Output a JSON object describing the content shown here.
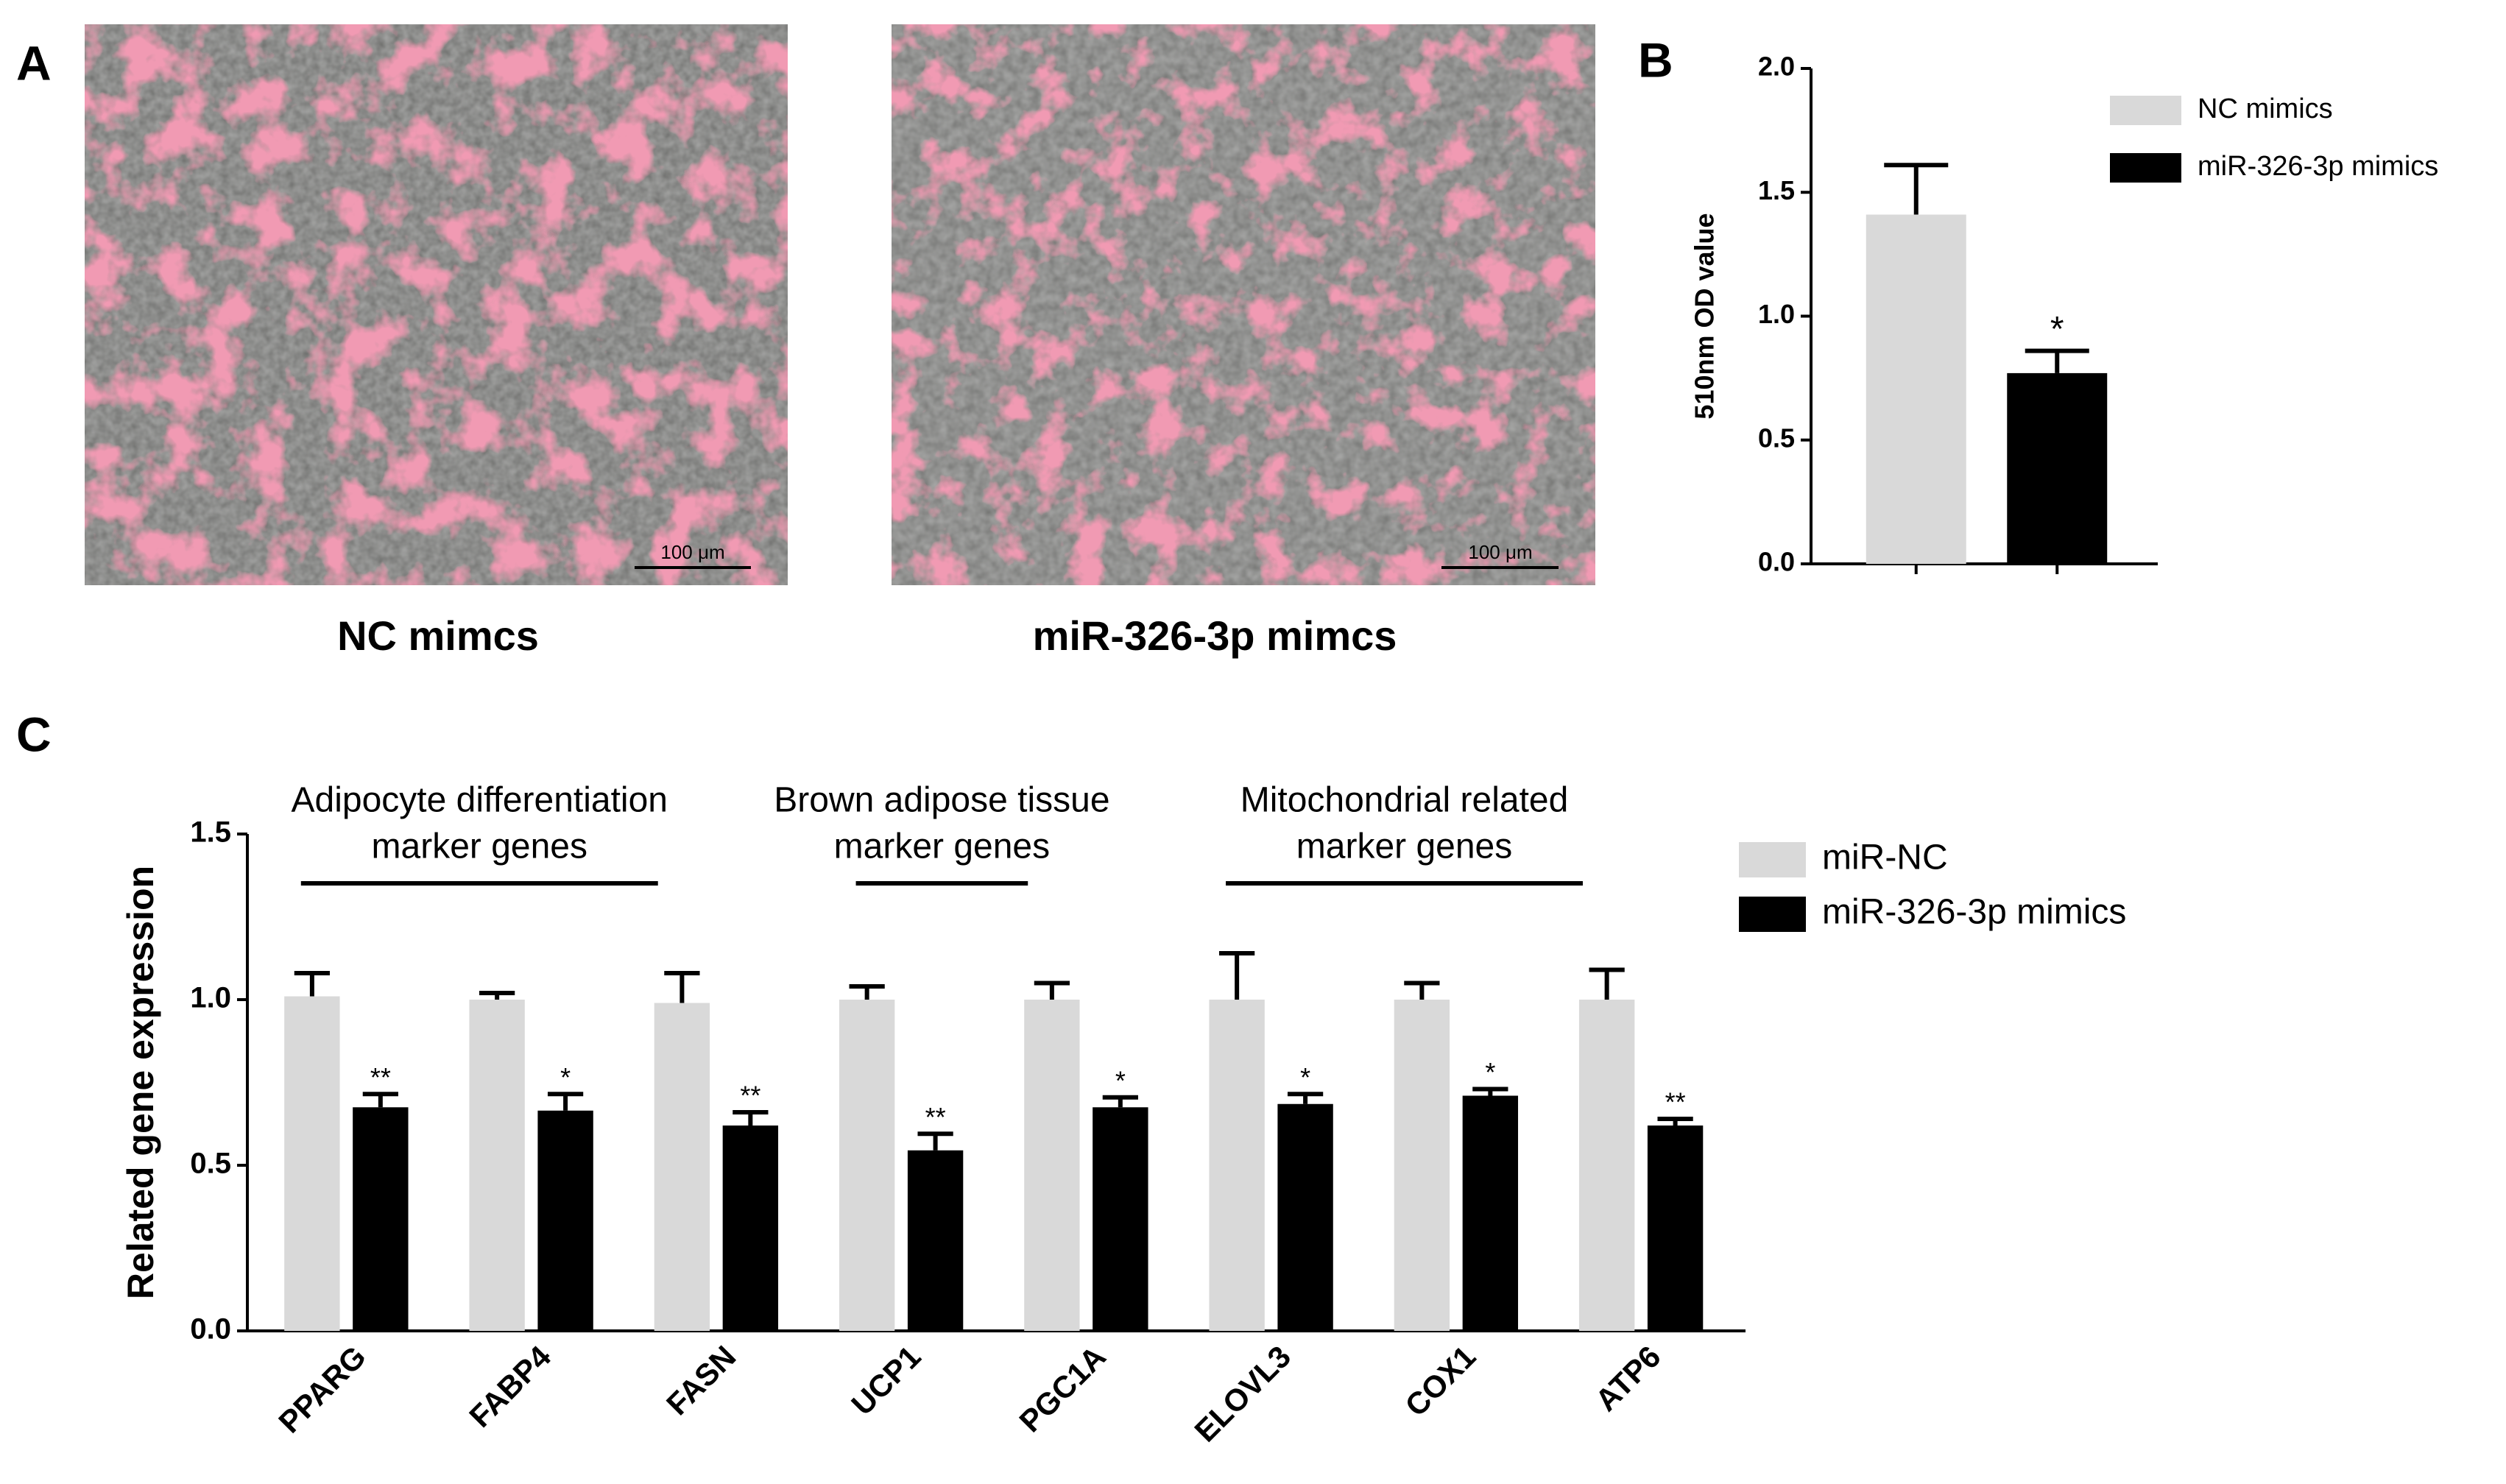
{
  "panels": {
    "labels": [
      "A",
      "B",
      "C"
    ],
    "images": [
      {
        "caption": "NC mimcs",
        "scale_bar": "100 μm"
      },
      {
        "caption": "miR-326-3p mimcs",
        "scale_bar": "100 μm"
      }
    ]
  },
  "chart_data": [
    {
      "type": "bar",
      "ylabel": "510nm OD value",
      "ylim": [
        0,
        2
      ],
      "yticks": [
        {
          "value": 0,
          "label": "0.0"
        },
        {
          "value": 0.5,
          "label": "0.5"
        },
        {
          "value": 1,
          "label": "1.0"
        },
        {
          "value": 1.5,
          "label": "1.5"
        },
        {
          "value": 2,
          "label": "2.0"
        }
      ],
      "categories": [
        null,
        null
      ],
      "series": [
        {
          "name": "NC mimics",
          "color": "#d9d9d9",
          "values": [
            1.41,
            null
          ],
          "errors": [
            0.2,
            null
          ],
          "significance": [
            null,
            null
          ]
        },
        {
          "name": "miR-326-3p mimics",
          "color": "#000000",
          "values": [
            null,
            0.77
          ],
          "errors": [
            null,
            0.09
          ],
          "significance": [
            null,
            "*"
          ]
        }
      ],
      "legend": "upper right"
    },
    {
      "type": "bar",
      "ylabel": "Related gene expression",
      "ylim": [
        0,
        1.5
      ],
      "yticks": [
        {
          "value": 0,
          "label": "0.0"
        },
        {
          "value": 0.5,
          "label": "0.5"
        },
        {
          "value": 1,
          "label": "1.0"
        },
        {
          "value": 1.5,
          "label": "1.5"
        }
      ],
      "categories": [
        "PPARG",
        "FABP4",
        "FASN",
        "UCP1",
        "PGC1A",
        "ELOVL3",
        "COX1",
        "ATP6"
      ],
      "series": [
        {
          "name": "miR-NC",
          "color": "#d9d9d9",
          "values": [
            1.01,
            1.0,
            0.99,
            1.0,
            1.0,
            1.0,
            1.0,
            1.0
          ],
          "errors": [
            0.07,
            0.02,
            0.09,
            0.04,
            0.05,
            0.14,
            0.05,
            0.09
          ],
          "significance": [
            null,
            null,
            null,
            null,
            null,
            null,
            null,
            null
          ]
        },
        {
          "name": "miR-326-3p mimics",
          "color": "#000000",
          "values": [
            0.675,
            0.665,
            0.62,
            0.545,
            0.675,
            0.685,
            0.71,
            0.62
          ],
          "errors": [
            0.04,
            0.05,
            0.04,
            0.05,
            0.03,
            0.03,
            0.02,
            0.02
          ],
          "significance": [
            "**",
            "*",
            "**",
            "**",
            "*",
            "*",
            "*",
            "**"
          ]
        }
      ],
      "groups": [
        {
          "label": [
            "Adipocyte differentiation",
            "marker genes"
          ],
          "span": [
            0,
            2
          ]
        },
        {
          "label": [
            "Brown adipose tissue",
            "marker genes"
          ],
          "span": [
            3,
            4
          ]
        },
        {
          "label": [
            "Mitochondrial related",
            "marker genes"
          ],
          "span": [
            5,
            7
          ]
        }
      ],
      "legend": "upper right"
    }
  ]
}
